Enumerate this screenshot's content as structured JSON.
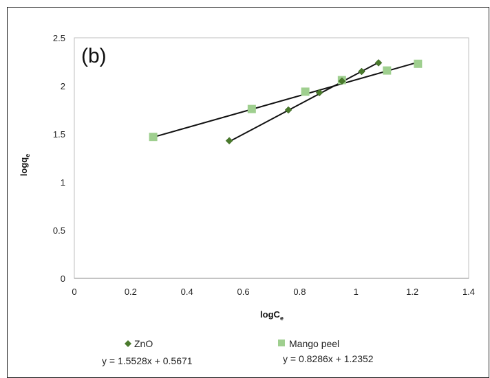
{
  "chart_data": {
    "type": "scatter",
    "panel_label": "(b)",
    "xlabel": "logC",
    "xlabel_sub": "e",
    "ylabel": "logq",
    "ylabel_sub": "e",
    "xlim": [
      0,
      1.4
    ],
    "ylim": [
      0,
      2.5
    ],
    "x_ticks": [
      "0",
      "0.2",
      "0.4",
      "0.6",
      "0.8",
      "1",
      "1.2",
      "1.4"
    ],
    "y_ticks": [
      "0",
      "0.5",
      "1",
      "1.5",
      "2",
      "2.5"
    ],
    "grid": false,
    "legend_position": "bottom",
    "series": [
      {
        "name": "ZnO",
        "marker": "diamond",
        "color": "#4a7a2c",
        "x": [
          0.55,
          0.76,
          0.87,
          0.95,
          1.02,
          1.08
        ],
        "y": [
          1.43,
          1.75,
          1.93,
          2.05,
          2.15,
          2.24
        ],
        "trendline": {
          "slope": 1.5528,
          "intercept": 0.5671,
          "x_range": [
            0.55,
            1.08
          ]
        },
        "equation": "y = 1.5528x + 0.5671"
      },
      {
        "name": "Mango peel",
        "marker": "square",
        "color": "#9fcf8f",
        "x": [
          0.28,
          0.63,
          0.82,
          0.95,
          1.11,
          1.22
        ],
        "y": [
          1.47,
          1.76,
          1.94,
          2.06,
          2.16,
          2.23
        ],
        "trendline": {
          "slope": 0.8286,
          "intercept": 1.2352,
          "x_range": [
            0.28,
            1.22
          ]
        },
        "equation": "y = 0.8286x + 1.2352"
      }
    ]
  }
}
